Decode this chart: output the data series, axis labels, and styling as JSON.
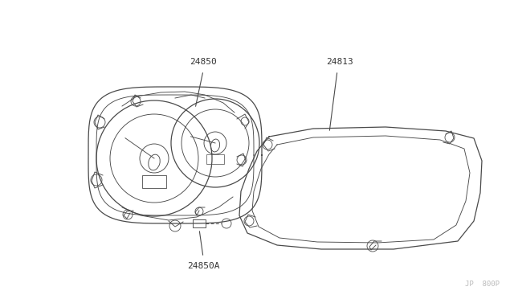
{
  "bg_color": "#ffffff",
  "line_color": "#4a4a4a",
  "label_color": "#333333",
  "fig_width": 6.4,
  "fig_height": 3.72,
  "dpi": 100,
  "watermark": "JP  800P",
  "label_24850": "24850",
  "label_24813": "24813",
  "label_24850A": "24850A"
}
